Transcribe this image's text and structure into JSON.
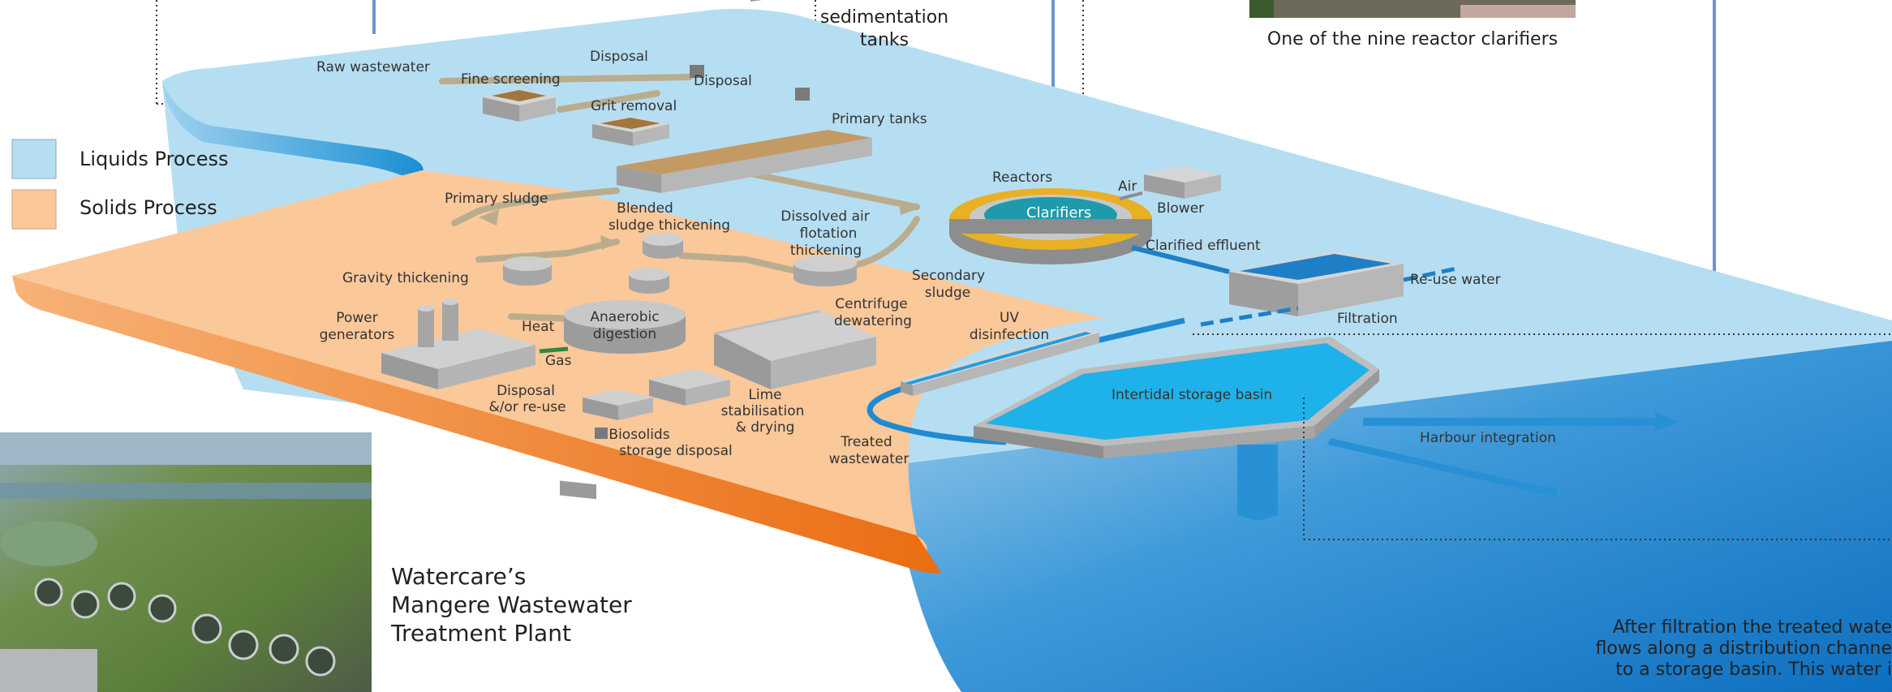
{
  "legend": {
    "liquids": {
      "label": "Liquids Process",
      "color": "#b6def2"
    },
    "solids": {
      "label": "Solids Process",
      "color": "#fbc89a"
    }
  },
  "photo_caption_plant": [
    "Watercare’s",
    "Mangere Wastewater",
    "Treatment Plant"
  ],
  "photo_caption_clarifier": "One of the nine reactor clarifiers",
  "top_label_sedimentation": [
    "sedimentation",
    "tanks"
  ],
  "labels": {
    "raw_wastewater": "Raw wastewater",
    "fine_screening": "Fine screening",
    "disposal_1": "Disposal",
    "disposal_2": "Disposal",
    "grit_removal": "Grit removal",
    "primary_tanks": "Primary tanks",
    "primary_sludge": "Primary sludge",
    "blended_sludge": [
      "Blended",
      "sludge thickening"
    ],
    "dissolved_air": [
      "Dissolved air",
      "flotation",
      "thickening"
    ],
    "reactors": "Reactors",
    "clarifiers": "Clarifiers",
    "air": "Air",
    "blower": "Blower",
    "clarified_effluent": "Clarified effluent",
    "secondary_sludge": [
      "Secondary",
      "sludge"
    ],
    "gravity_thickening": "Gravity thickening",
    "reuse_water": "Re-use water",
    "filtration": "Filtration",
    "power_generators": [
      "Power",
      "generators"
    ],
    "heat": "Heat",
    "anaerobic": [
      "Anaerobic",
      "digestion"
    ],
    "centrifuge": [
      "Centrifuge",
      "dewatering"
    ],
    "uv": [
      "UV",
      "disinfection"
    ],
    "gas": "Gas",
    "disposal_reuse": [
      "Disposal",
      "&/or re-use"
    ],
    "lime": [
      "Lime",
      "stabilisation",
      "& drying"
    ],
    "biosolids": [
      "Biosolids",
      "storage disposal"
    ],
    "treated_wastewater": [
      "Treated",
      "wastewater"
    ],
    "intertidal": "Intertidal storage basin",
    "harbour": "Harbour integration"
  },
  "bottom_right_text": [
    "After filtration the treated wate",
    "flows along a distribution channe",
    "to a storage basin. This water i"
  ]
}
